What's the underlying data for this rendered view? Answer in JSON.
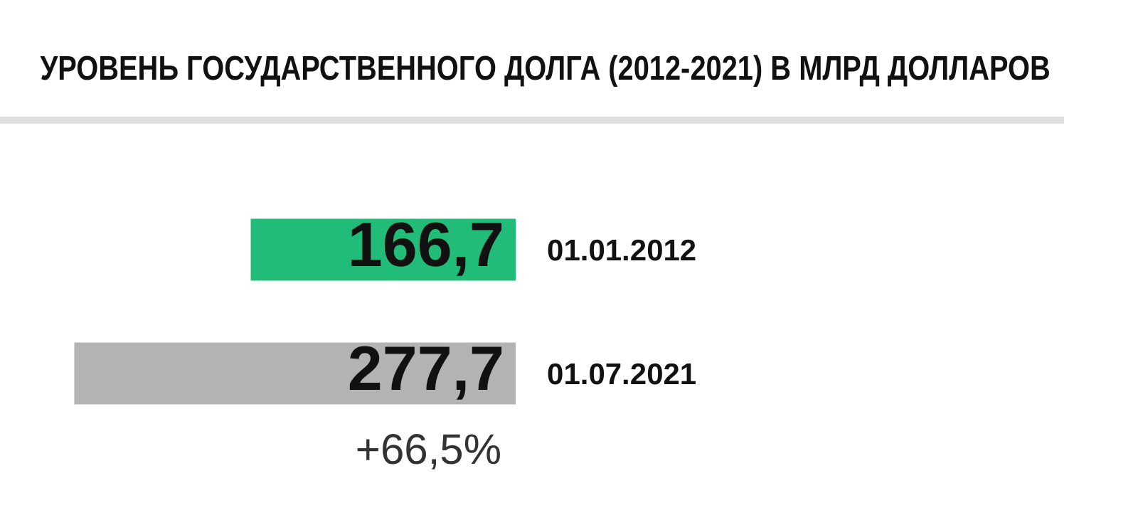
{
  "chart_data": {
    "type": "bar",
    "orientation": "horizontal",
    "title": "УРОВЕНЬ ГОСУДАРСТВЕННОГО ДОЛГА (2012-2021) В МЛРД ДОЛЛАРОВ",
    "categories": [
      "01.01.2012",
      "01.07.2021"
    ],
    "values": [
      166.7,
      277.7
    ],
    "value_labels": [
      "166,7",
      "277,7"
    ],
    "colors": [
      "#21bd78",
      "#b3b3b3"
    ],
    "xlim": [
      324,
      -392
    ],
    "tick_labels": false,
    "grid": false,
    "annotations": [
      "+66,5%"
    ]
  }
}
